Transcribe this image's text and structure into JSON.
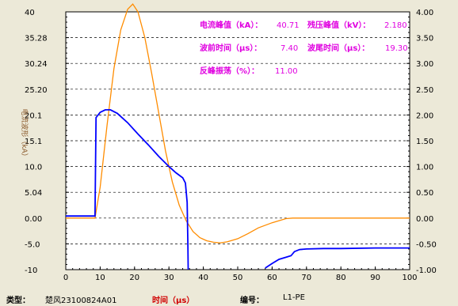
{
  "chart_data": {
    "type": "line",
    "xlabel": "时间（μs）",
    "ylabel": "电流波形（kA）",
    "xlim": [
      0,
      100
    ],
    "ylim_left": [
      -10,
      40
    ],
    "ylim_right": [
      -1.0,
      4.0
    ],
    "x_ticks": [
      "0",
      "10",
      "20",
      "30",
      "40",
      "50",
      "60",
      "70",
      "80",
      "90",
      "100"
    ],
    "y_ticks_left": [
      "40",
      "35.28",
      "30.24",
      "25.20",
      "20.1",
      "15.1",
      "10.0",
      "5.04",
      "0.00",
      "-5.0",
      "-10"
    ],
    "y_ticks_right": [
      "4.00",
      "3.50",
      "3.00",
      "2.50",
      "2.00",
      "1.50",
      "1.00",
      "0.50",
      "0.00",
      "-0.50",
      "-1.00"
    ],
    "grid": "dashed",
    "series": [
      {
        "color": "#ff8c00",
        "axis": "left",
        "x": [
          0,
          8.5,
          10,
          12,
          14,
          16,
          18,
          19.5,
          21,
          23,
          25,
          27,
          29,
          31,
          33,
          35,
          37,
          39,
          41,
          43,
          45,
          47,
          50,
          53,
          56,
          60,
          64,
          66,
          68,
          70,
          80,
          90,
          100
        ],
        "y": [
          0,
          0,
          6,
          18,
          29,
          36.5,
          40.5,
          41.5,
          40,
          35,
          28,
          20.5,
          13,
          7,
          2.5,
          -0.5,
          -2.6,
          -3.8,
          -4.4,
          -4.7,
          -4.8,
          -4.6,
          -4.0,
          -3.0,
          -1.9,
          -0.9,
          -0.1,
          0.0,
          0.0,
          0.0,
          0.0,
          0.0,
          0.0
        ]
      },
      {
        "color": "#0000ff",
        "axis": "right",
        "x": [
          0,
          8.5,
          8.8,
          10,
          11.5,
          13,
          15,
          18,
          21,
          24,
          27,
          30,
          32,
          34,
          34.8,
          35.3,
          35.5,
          35.6
        ],
        "y": [
          0.04,
          0.04,
          1.95,
          2.05,
          2.1,
          2.1,
          2.03,
          1.85,
          1.63,
          1.42,
          1.2,
          1.0,
          0.88,
          0.78,
          0.68,
          0.3,
          -0.5,
          -1.0
        ]
      },
      {
        "color": "#0000ff",
        "axis": "right",
        "x": [
          58,
          60,
          62,
          64,
          65.5,
          66.5,
          68,
          70,
          75,
          80,
          90,
          100
        ],
        "y": [
          -0.97,
          -0.88,
          -0.8,
          -0.76,
          -0.73,
          -0.65,
          -0.61,
          -0.6,
          -0.59,
          -0.59,
          -0.58,
          -0.58
        ]
      }
    ]
  },
  "info": {
    "peak_current_label": "电流峰值（kA）：",
    "peak_current_value": "40.71",
    "residual_voltage_label": "残压峰值（kV）：",
    "residual_voltage_value": "2.180",
    "front_time_label": "波前时间（μs）：",
    "front_time_value": "7.40",
    "tail_time_label": "波尾时间（μs）：",
    "tail_time_value": "19.30",
    "oscillation_label": "反峰振荡（%）：",
    "oscillation_value": "11.00"
  },
  "footer": {
    "type_label": "类型：",
    "type_value": "楚风23100824A01",
    "time_label": "时间（μs）",
    "id_label": "编号：",
    "id_value": "L1-PE"
  }
}
